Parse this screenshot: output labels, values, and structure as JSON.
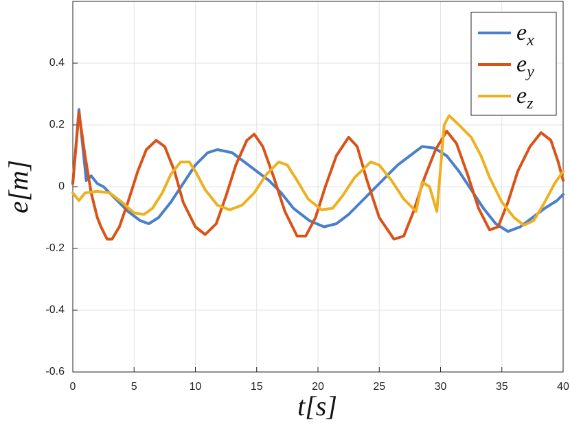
{
  "chart_data": {
    "type": "line",
    "xlabel": "t[s]",
    "ylabel": "e[m]",
    "xlim": [
      0,
      40
    ],
    "xticks": [
      0,
      5,
      10,
      15,
      20,
      25,
      30,
      35,
      40
    ],
    "ylim": [
      -0.6,
      0.6
    ],
    "yticks": [
      -0.6,
      -0.4,
      -0.2,
      0,
      0.2,
      0.4
    ],
    "grid": true,
    "legend": "upper right",
    "series": [
      {
        "name": "e_x",
        "color": "#4A7FC9",
        "x": [
          0,
          0.5,
          1.1,
          1.5,
          2,
          2.5,
          3.5,
          4.5,
          5.5,
          6.2,
          7,
          8,
          9,
          10,
          11,
          11.8,
          13,
          14,
          15,
          16,
          17,
          18,
          19.3,
          20.5,
          21.5,
          22.5,
          23.5,
          24.5,
          25.5,
          26.5,
          27.5,
          28.5,
          29.5,
          30.5,
          31.5,
          32.5,
          33.5,
          34.5,
          35.5,
          36.5,
          37.5,
          38.5,
          39.5,
          40
        ],
        "values": [
          0.01,
          0.25,
          0.02,
          0.035,
          0.01,
          0,
          -0.04,
          -0.08,
          -0.11,
          -0.12,
          -0.1,
          -0.05,
          0.01,
          0.07,
          0.11,
          0.12,
          0.11,
          0.08,
          0.05,
          0.02,
          -0.02,
          -0.07,
          -0.11,
          -0.13,
          -0.12,
          -0.09,
          -0.05,
          -0.01,
          0.03,
          0.07,
          0.1,
          0.13,
          0.125,
          0.1,
          0.05,
          -0.01,
          -0.07,
          -0.12,
          -0.145,
          -0.13,
          -0.1,
          -0.07,
          -0.045,
          -0.025
        ]
      },
      {
        "name": "e_y",
        "color": "#D95319",
        "x": [
          0,
          0.5,
          1,
          1.5,
          2,
          2.3,
          2.8,
          3.2,
          3.8,
          4.5,
          5.3,
          6,
          6.8,
          7.5,
          8.3,
          9,
          10,
          10.8,
          11.7,
          12.5,
          13.3,
          14.2,
          14.8,
          15.5,
          16.4,
          17.3,
          18.3,
          19,
          19.8,
          20.6,
          21.5,
          22.5,
          23.2,
          24,
          25,
          26.2,
          27,
          27.8,
          28.7,
          29.6,
          30.5,
          31.3,
          32.2,
          33.1,
          34,
          34.7,
          35.5,
          36.3,
          37.3,
          38.2,
          39,
          39.6,
          40
        ],
        "values": [
          0.01,
          0.24,
          0.1,
          -0.02,
          -0.1,
          -0.13,
          -0.17,
          -0.17,
          -0.13,
          -0.05,
          0.05,
          0.12,
          0.15,
          0.13,
          0.05,
          -0.05,
          -0.13,
          -0.155,
          -0.12,
          -0.03,
          0.07,
          0.15,
          0.17,
          0.13,
          0.03,
          -0.08,
          -0.16,
          -0.16,
          -0.1,
          0,
          0.1,
          0.16,
          0.13,
          0.02,
          -0.1,
          -0.17,
          -0.16,
          -0.08,
          0.03,
          0.12,
          0.18,
          0.14,
          0.04,
          -0.07,
          -0.14,
          -0.13,
          -0.05,
          0.05,
          0.13,
          0.175,
          0.15,
          0.08,
          0.02
        ]
      },
      {
        "name": "e_z",
        "color": "#EDB120",
        "x": [
          0,
          0.5,
          1,
          2,
          3,
          4,
          5,
          5.8,
          6.5,
          7.3,
          8,
          8.8,
          9.5,
          10,
          10.8,
          11.8,
          12.8,
          13.8,
          14.8,
          15.8,
          16.8,
          17.5,
          18.3,
          19.2,
          20.3,
          21.2,
          22,
          23,
          24.3,
          25,
          26,
          27,
          28,
          28.5,
          29.1,
          29.7,
          30.3,
          30.7,
          31.5,
          32.5,
          33.3,
          34,
          35,
          36,
          36.8,
          37.6,
          38.5,
          39.3,
          40
        ],
        "values": [
          -0.02,
          -0.045,
          -0.02,
          -0.015,
          -0.02,
          -0.05,
          -0.085,
          -0.09,
          -0.07,
          -0.02,
          0.04,
          0.08,
          0.08,
          0.05,
          -0.01,
          -0.06,
          -0.075,
          -0.06,
          -0.02,
          0.04,
          0.08,
          0.07,
          0.02,
          -0.04,
          -0.075,
          -0.07,
          -0.03,
          0.03,
          0.08,
          0.07,
          0.02,
          -0.04,
          -0.08,
          0.015,
          0,
          -0.08,
          0.2,
          0.23,
          0.2,
          0.16,
          0.1,
          0.03,
          -0.05,
          -0.1,
          -0.125,
          -0.11,
          -0.05,
          0.01,
          0.05
        ]
      }
    ]
  }
}
